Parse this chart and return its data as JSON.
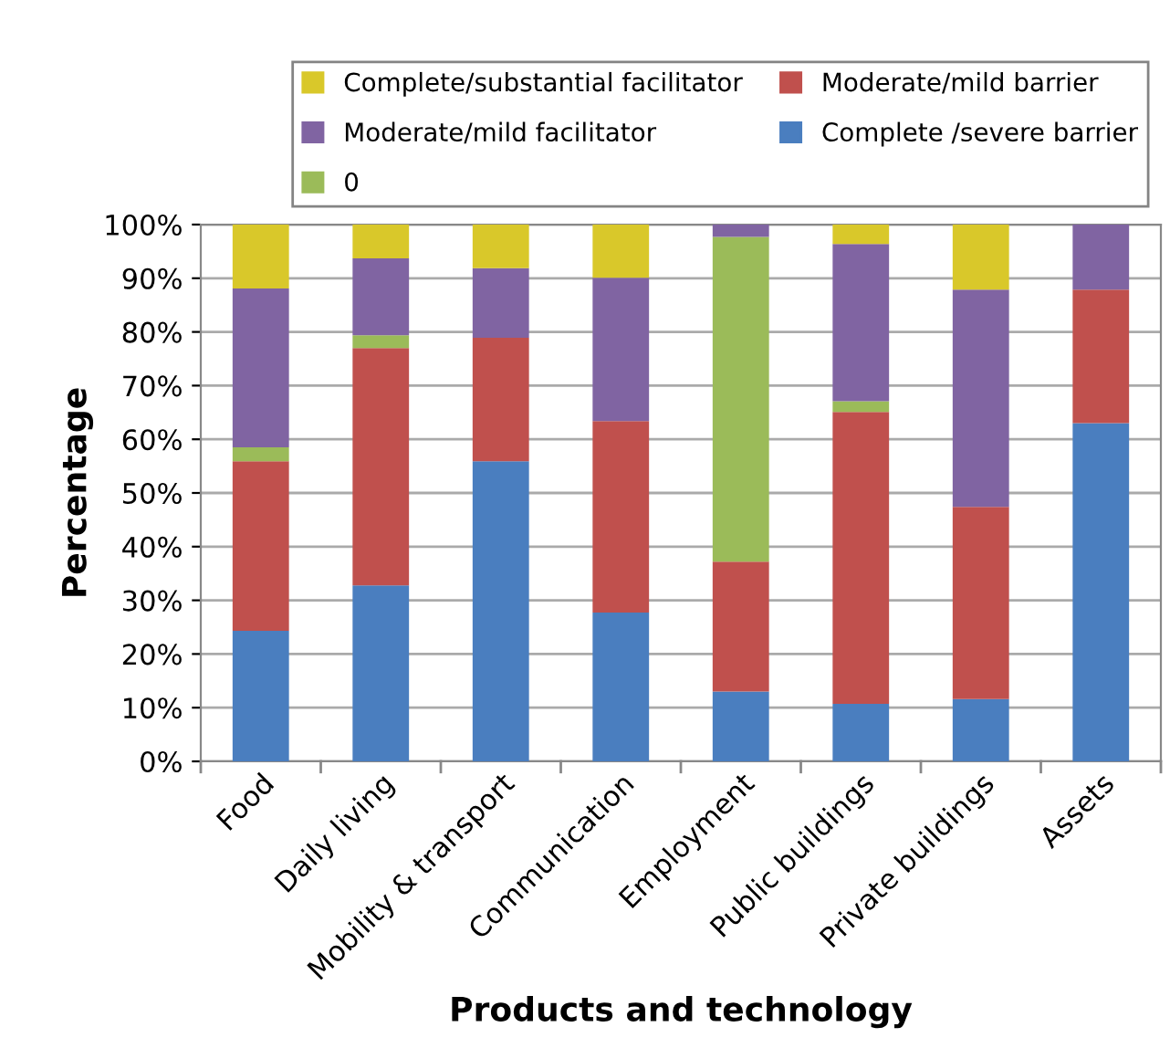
{
  "chart_data": {
    "type": "bar",
    "stacked": true,
    "xlabel": "Products and technology",
    "ylabel": "Percentage",
    "categories": [
      "Food",
      "Daily living",
      "Mobility & transport",
      "Communication",
      "Employment",
      "Public buildings",
      "Private buildings",
      "Assets"
    ],
    "series": [
      {
        "name": "Complete /severe barrier",
        "color": "#4a7ebf",
        "values": [
          24.3,
          32.8,
          55.9,
          27.7,
          13.0,
          10.7,
          11.6,
          63.0
        ]
      },
      {
        "name": "Moderate/mild barrier",
        "color": "#c0504d",
        "values": [
          31.6,
          44.2,
          23.0,
          35.7,
          24.2,
          54.4,
          35.8,
          24.9
        ]
      },
      {
        "name": "0",
        "color": "#9bbb59",
        "values": [
          2.6,
          2.4,
          0,
          0,
          60.5,
          2.0,
          0,
          0
        ]
      },
      {
        "name": "Moderate/mild facilitator",
        "color": "#8064a2",
        "values": [
          29.6,
          14.3,
          13.0,
          26.7,
          2.3,
          29.3,
          40.5,
          12.1
        ]
      },
      {
        "name": "Complete/substantial facilitator",
        "color": "#d9c82a",
        "values": [
          11.9,
          6.3,
          8.1,
          9.9,
          0,
          3.6,
          12.1,
          0
        ]
      }
    ],
    "ylim": [
      0,
      100
    ],
    "yticks": [
      {
        "value": 0,
        "label": "0%"
      },
      {
        "value": 10,
        "label": "10%"
      },
      {
        "value": 20,
        "label": "20%"
      },
      {
        "value": 30,
        "label": "30%"
      },
      {
        "value": 40,
        "label": "40%"
      },
      {
        "value": 50,
        "label": "50%"
      },
      {
        "value": 60,
        "label": "60%"
      },
      {
        "value": 70,
        "label": "70%"
      },
      {
        "value": 80,
        "label": "80%"
      },
      {
        "value": 90,
        "label": "90%"
      },
      {
        "value": 100,
        "label": "100%"
      }
    ],
    "grid": "y",
    "legend": "top right"
  }
}
